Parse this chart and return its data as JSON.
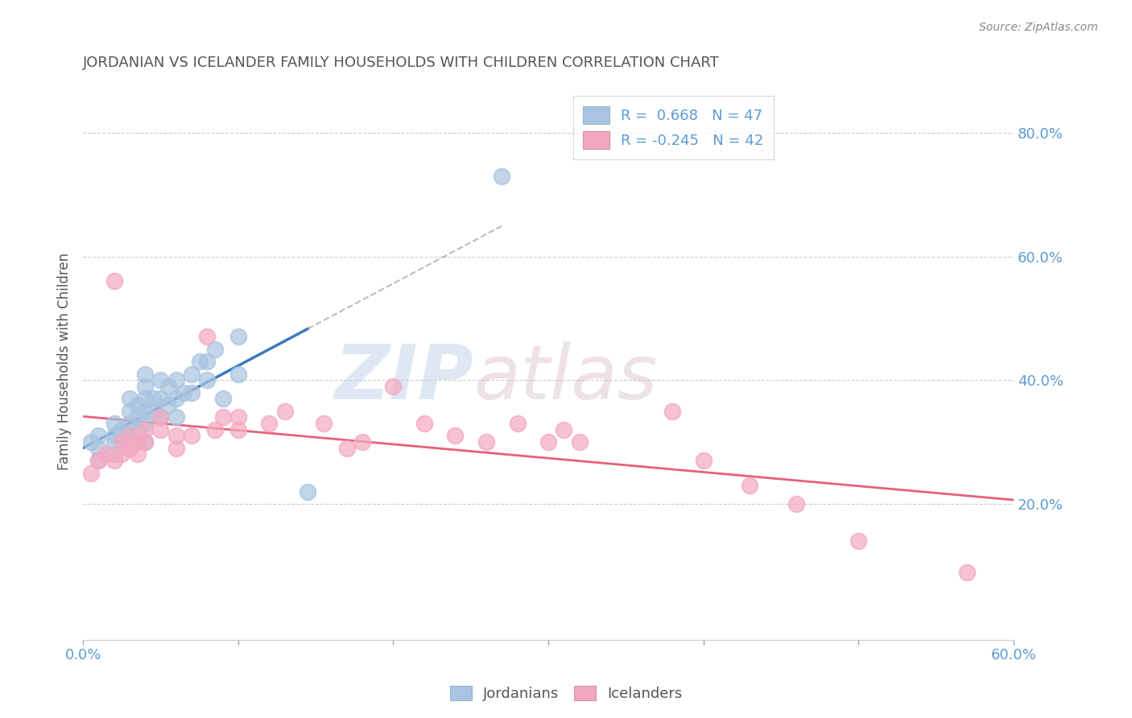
{
  "title": "JORDANIAN VS ICELANDER FAMILY HOUSEHOLDS WITH CHILDREN CORRELATION CHART",
  "source": "Source: ZipAtlas.com",
  "ylabel": "Family Households with Children",
  "xlim": [
    0.0,
    0.6
  ],
  "ylim": [
    -0.02,
    0.88
  ],
  "xticks": [
    0.0,
    0.1,
    0.2,
    0.3,
    0.4,
    0.5,
    0.6
  ],
  "xticklabels": [
    "0.0%",
    "",
    "",
    "",
    "",
    "",
    "60.0%"
  ],
  "ytick_right_positions": [
    0.2,
    0.4,
    0.6,
    0.8
  ],
  "ytick_right_labels": [
    "20.0%",
    "40.0%",
    "60.0%",
    "80.0%"
  ],
  "blue_R": 0.668,
  "blue_N": 47,
  "pink_R": -0.245,
  "pink_N": 42,
  "blue_color": "#a8c4e0",
  "pink_color": "#f4a8c0",
  "blue_line_color": "#3a7abf",
  "pink_line_color": "#e8607a",
  "watermark_zip": "ZIP",
  "watermark_atlas": "atlas",
  "blue_scatter_x": [
    0.005,
    0.01,
    0.01,
    0.01,
    0.02,
    0.02,
    0.02,
    0.02,
    0.025,
    0.025,
    0.03,
    0.03,
    0.03,
    0.03,
    0.03,
    0.035,
    0.035,
    0.035,
    0.035,
    0.04,
    0.04,
    0.04,
    0.04,
    0.04,
    0.04,
    0.045,
    0.045,
    0.05,
    0.05,
    0.05,
    0.055,
    0.055,
    0.06,
    0.06,
    0.06,
    0.065,
    0.07,
    0.07,
    0.075,
    0.08,
    0.08,
    0.085,
    0.09,
    0.1,
    0.1,
    0.145,
    0.27
  ],
  "blue_scatter_y": [
    0.3,
    0.27,
    0.29,
    0.31,
    0.28,
    0.3,
    0.31,
    0.33,
    0.31,
    0.32,
    0.29,
    0.31,
    0.33,
    0.35,
    0.37,
    0.3,
    0.32,
    0.34,
    0.36,
    0.3,
    0.33,
    0.35,
    0.37,
    0.39,
    0.41,
    0.35,
    0.37,
    0.34,
    0.37,
    0.4,
    0.36,
    0.39,
    0.34,
    0.37,
    0.4,
    0.38,
    0.38,
    0.41,
    0.43,
    0.4,
    0.43,
    0.45,
    0.37,
    0.41,
    0.47,
    0.22,
    0.73
  ],
  "pink_scatter_x": [
    0.005,
    0.01,
    0.015,
    0.02,
    0.02,
    0.025,
    0.025,
    0.03,
    0.03,
    0.035,
    0.035,
    0.04,
    0.04,
    0.05,
    0.05,
    0.06,
    0.06,
    0.07,
    0.08,
    0.085,
    0.09,
    0.1,
    0.1,
    0.12,
    0.13,
    0.155,
    0.17,
    0.18,
    0.2,
    0.22,
    0.24,
    0.26,
    0.28,
    0.3,
    0.31,
    0.32,
    0.38,
    0.4,
    0.43,
    0.46,
    0.5,
    0.57
  ],
  "pink_scatter_y": [
    0.25,
    0.27,
    0.28,
    0.27,
    0.56,
    0.28,
    0.3,
    0.29,
    0.31,
    0.28,
    0.3,
    0.3,
    0.32,
    0.32,
    0.34,
    0.29,
    0.31,
    0.31,
    0.47,
    0.32,
    0.34,
    0.32,
    0.34,
    0.33,
    0.35,
    0.33,
    0.29,
    0.3,
    0.39,
    0.33,
    0.31,
    0.3,
    0.33,
    0.3,
    0.32,
    0.3,
    0.35,
    0.27,
    0.23,
    0.2,
    0.14,
    0.09
  ]
}
